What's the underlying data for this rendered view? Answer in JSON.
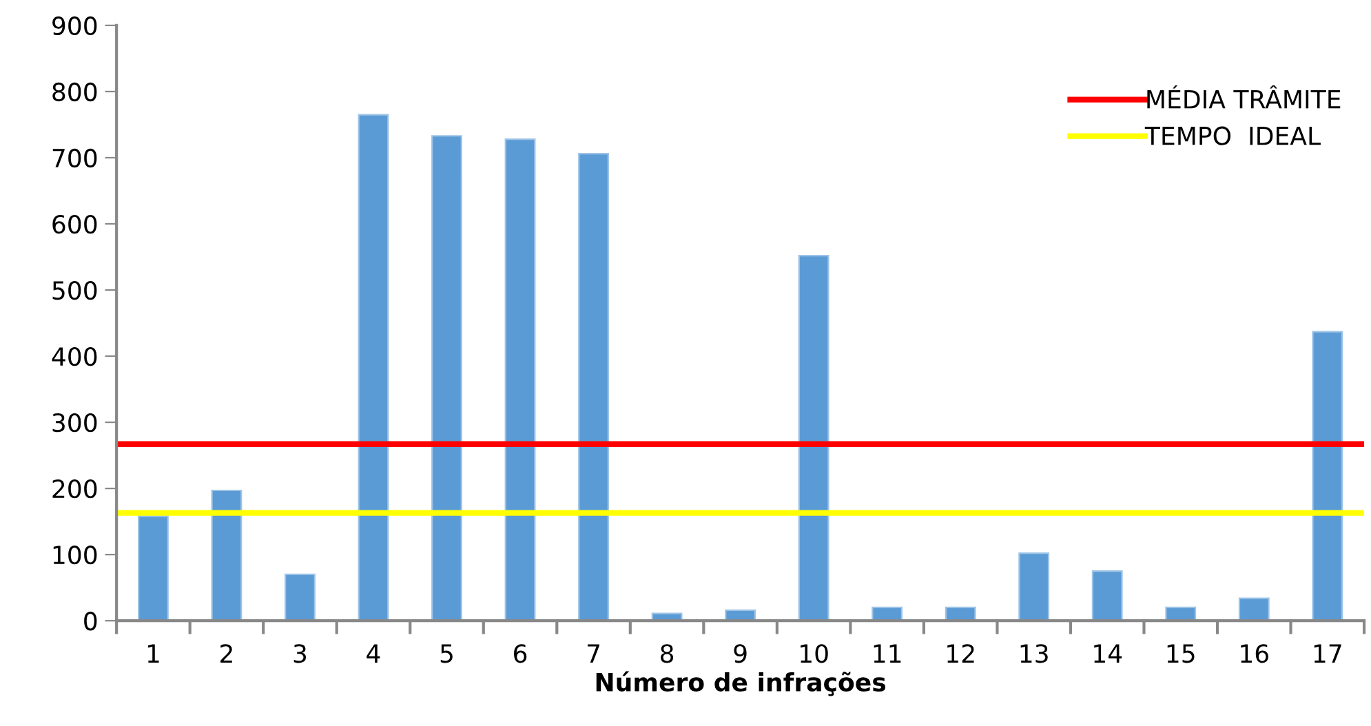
{
  "chart_data": {
    "type": "bar",
    "xlabel": "Número de infrações",
    "categories": [
      "1",
      "2",
      "3",
      "4",
      "5",
      "6",
      "7",
      "8",
      "9",
      "10",
      "11",
      "12",
      "13",
      "14",
      "15",
      "16",
      "17"
    ],
    "values": [
      158,
      197,
      70,
      765,
      733,
      728,
      706,
      11,
      16,
      552,
      20,
      20,
      102,
      75,
      20,
      34,
      437
    ],
    "color": "#5b9bd5",
    "ylim": [
      0,
      900
    ],
    "yticks": [
      0,
      100,
      200,
      300,
      400,
      500,
      600,
      700,
      800,
      900
    ],
    "grid": false,
    "legend": "top right",
    "ref_lines": [
      {
        "axis": "y",
        "value": 267,
        "label": "MÉDIA TRÂMITE",
        "color": "#ff0000",
        "line_style": "solid"
      },
      {
        "axis": "y",
        "value": 163,
        "label": "TEMPO  IDEAL",
        "color": "#ffff00",
        "line_style": "solid"
      }
    ]
  }
}
